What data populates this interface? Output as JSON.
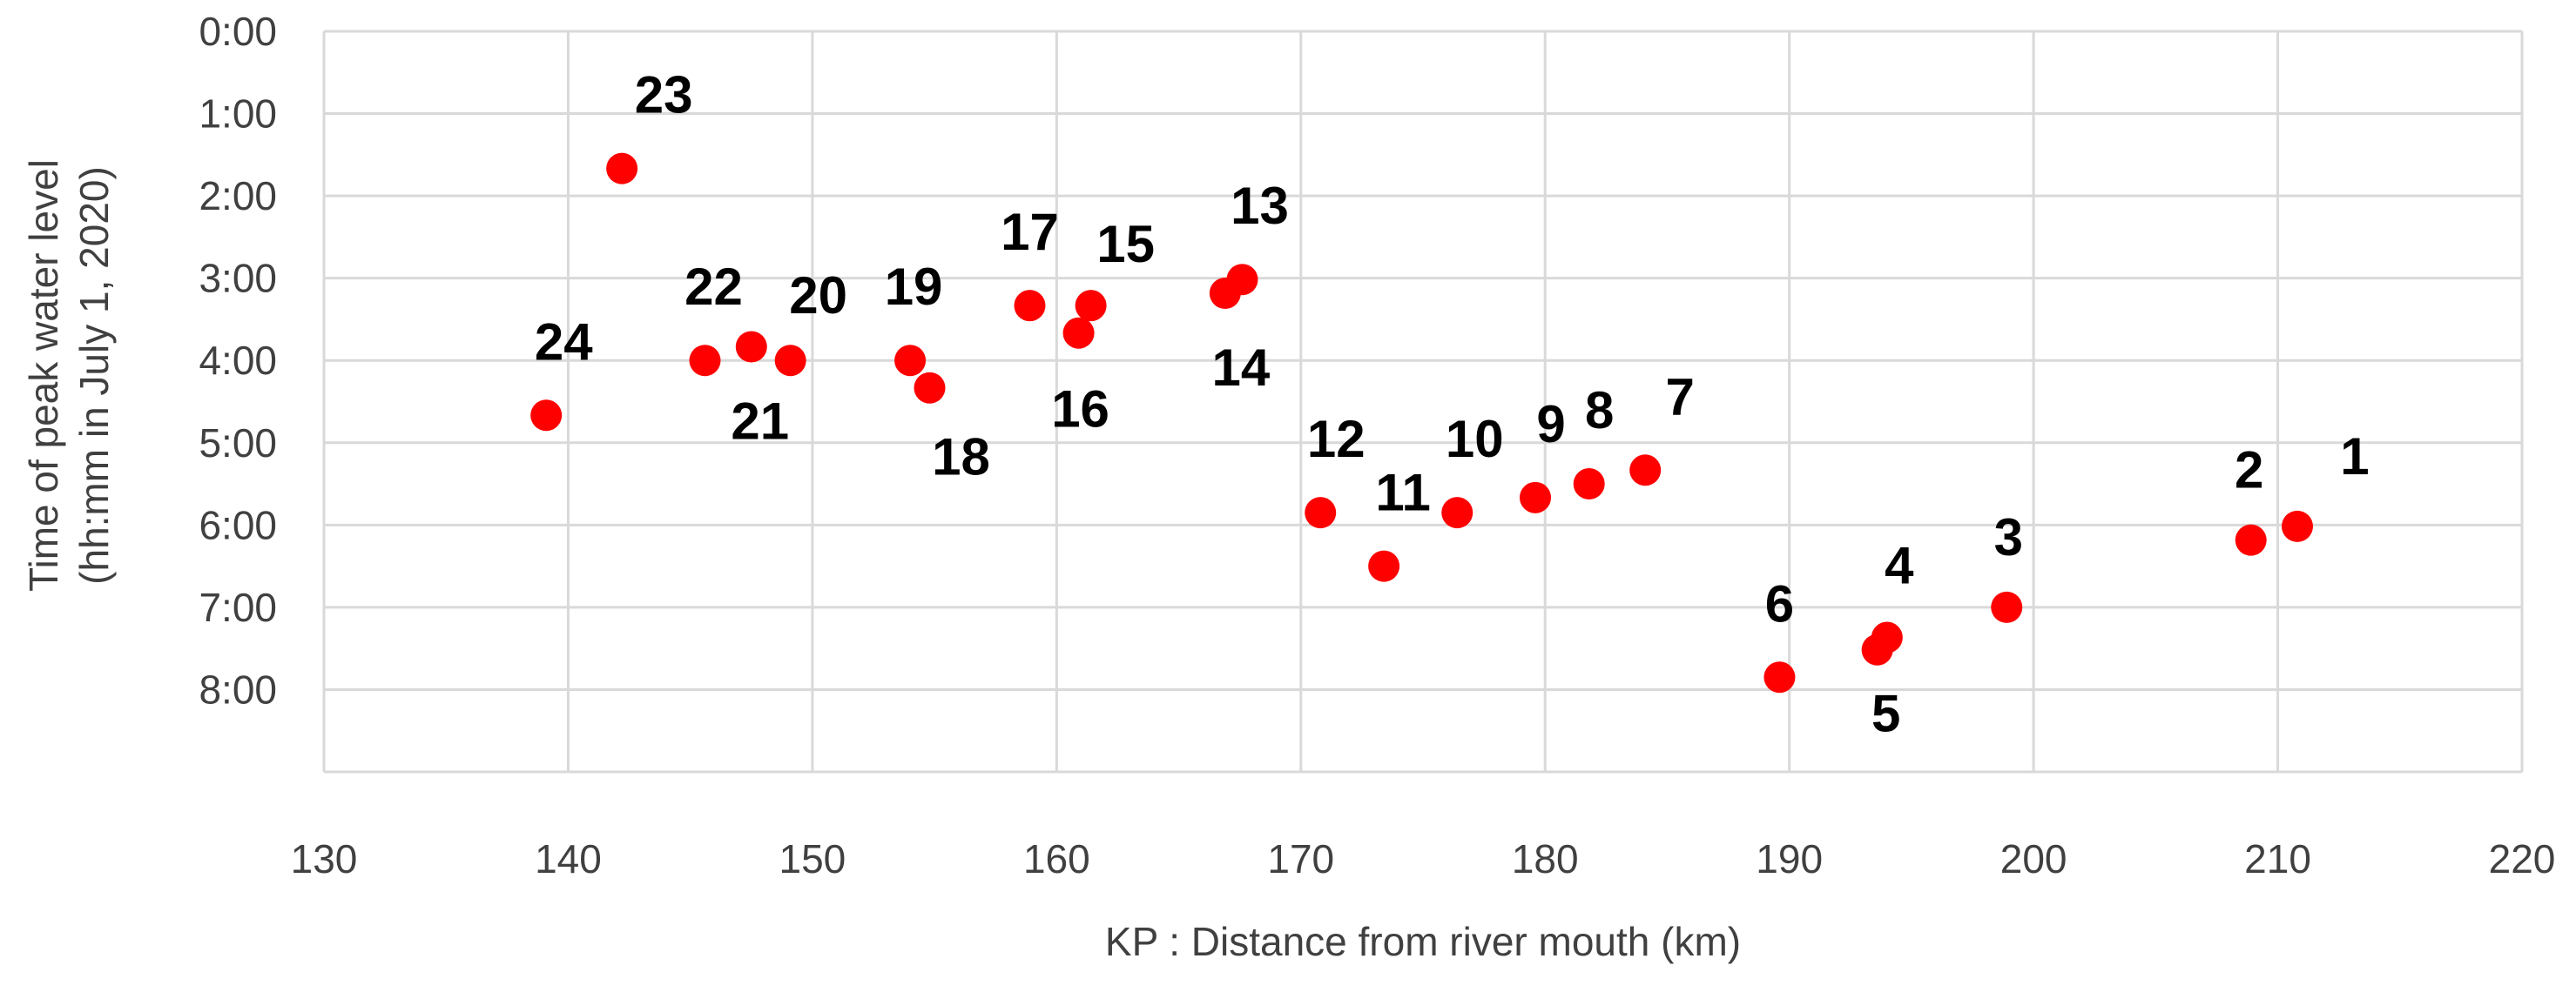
{
  "chart_data": {
    "type": "scatter",
    "title": "",
    "xlabel": "KP : Distance from river mouth (km)",
    "ylabel_lines": [
      "Time of peak water level",
      "(hh:mm in  July 1, 2020)"
    ],
    "xlim": [
      130,
      220
    ],
    "x_ticks": [
      130,
      140,
      150,
      160,
      170,
      180,
      190,
      200,
      210,
      220
    ],
    "x_tick_labels": [
      "130",
      "140",
      "150",
      "160",
      "170",
      "180",
      "190",
      "200",
      "210",
      "220"
    ],
    "ylim_hours": [
      0,
      9
    ],
    "y_inverted": true,
    "y_ticks_hours": [
      0,
      1,
      2,
      3,
      4,
      5,
      6,
      7,
      8
    ],
    "y_tick_labels": [
      "0:00",
      "1:00",
      "2:00",
      "3:00",
      "4:00",
      "5:00",
      "6:00",
      "7:00",
      "8:00"
    ],
    "grid": true,
    "marker_color": "#ff0000",
    "points": [
      {
        "label": "1",
        "x": 210.8,
        "y": "6:01"
      },
      {
        "label": "2",
        "x": 208.9,
        "y": "6:11"
      },
      {
        "label": "3",
        "x": 198.9,
        "y": "7:00"
      },
      {
        "label": "4",
        "x": 194.0,
        "y": "7:22"
      },
      {
        "label": "5",
        "x": 193.6,
        "y": "7:31"
      },
      {
        "label": "6",
        "x": 189.6,
        "y": "7:51"
      },
      {
        "label": "7",
        "x": 184.1,
        "y": "5:20"
      },
      {
        "label": "8",
        "x": 181.8,
        "y": "5:30"
      },
      {
        "label": "9",
        "x": 179.6,
        "y": "5:40"
      },
      {
        "label": "10",
        "x": 176.4,
        "y": "5:51"
      },
      {
        "label": "11",
        "x": 173.4,
        "y": "6:30"
      },
      {
        "label": "12",
        "x": 170.8,
        "y": "5:51"
      },
      {
        "label": "13",
        "x": 167.6,
        "y": "3:01"
      },
      {
        "label": "14",
        "x": 166.9,
        "y": "3:11"
      },
      {
        "label": "15",
        "x": 161.4,
        "y": "3:20"
      },
      {
        "label": "16",
        "x": 160.9,
        "y": "3:40"
      },
      {
        "label": "17",
        "x": 158.9,
        "y": "3:20"
      },
      {
        "label": "18",
        "x": 154.8,
        "y": "4:20"
      },
      {
        "label": "19",
        "x": 154.0,
        "y": "4:00"
      },
      {
        "label": "20",
        "x": 149.1,
        "y": "4:00"
      },
      {
        "label": "21",
        "x": 147.5,
        "y": "3:50"
      },
      {
        "label": "22",
        "x": 145.6,
        "y": "4:00"
      },
      {
        "label": "23",
        "x": 142.2,
        "y": "1:40"
      },
      {
        "label": "24",
        "x": 139.1,
        "y": "4:40"
      }
    ]
  }
}
